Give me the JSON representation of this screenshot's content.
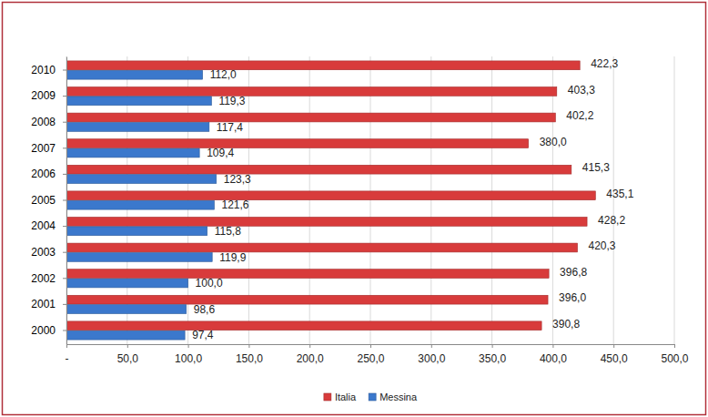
{
  "chart_data": {
    "type": "bar",
    "orientation": "horizontal",
    "categories": [
      "2000",
      "2001",
      "2002",
      "2003",
      "2004",
      "2005",
      "2006",
      "2007",
      "2008",
      "2009",
      "2010"
    ],
    "series": [
      {
        "name": "Italia",
        "color": "#d83b3b",
        "values": [
          390.8,
          396.0,
          396.8,
          420.3,
          428.2,
          435.1,
          415.3,
          380.0,
          402.2,
          403.3,
          422.3
        ],
        "value_labels": [
          "390,8",
          "396,0",
          "396,8",
          "420,3",
          "428,2",
          "435,1",
          "415,3",
          "380,0",
          "402,2",
          "403,3",
          "422,3"
        ]
      },
      {
        "name": "Messina",
        "color": "#3b78cc",
        "values": [
          97.4,
          98.6,
          100.0,
          119.9,
          115.8,
          121.6,
          123.3,
          109.4,
          117.4,
          119.3,
          112.0
        ],
        "value_labels": [
          "97,4",
          "98,6",
          "100,0",
          "119,9",
          "115,8",
          "121,6",
          "123,3",
          "109,4",
          "117,4",
          "119,3",
          "112,0"
        ]
      }
    ],
    "xlim": [
      0,
      500
    ],
    "xticks": [
      {
        "value": 0,
        "label": "-"
      },
      {
        "value": 50,
        "label": "50,0"
      },
      {
        "value": 100,
        "label": "100,0"
      },
      {
        "value": 150,
        "label": "150,0"
      },
      {
        "value": 200,
        "label": "200,0"
      },
      {
        "value": 250,
        "label": "250,0"
      },
      {
        "value": 300,
        "label": "300,0"
      },
      {
        "value": 350,
        "label": "350,0"
      },
      {
        "value": 400,
        "label": "400,0"
      },
      {
        "value": 450,
        "label": "450,0"
      },
      {
        "value": 500,
        "label": "500,0"
      }
    ],
    "grid": true,
    "data_labels": true,
    "legend": "bottom"
  }
}
